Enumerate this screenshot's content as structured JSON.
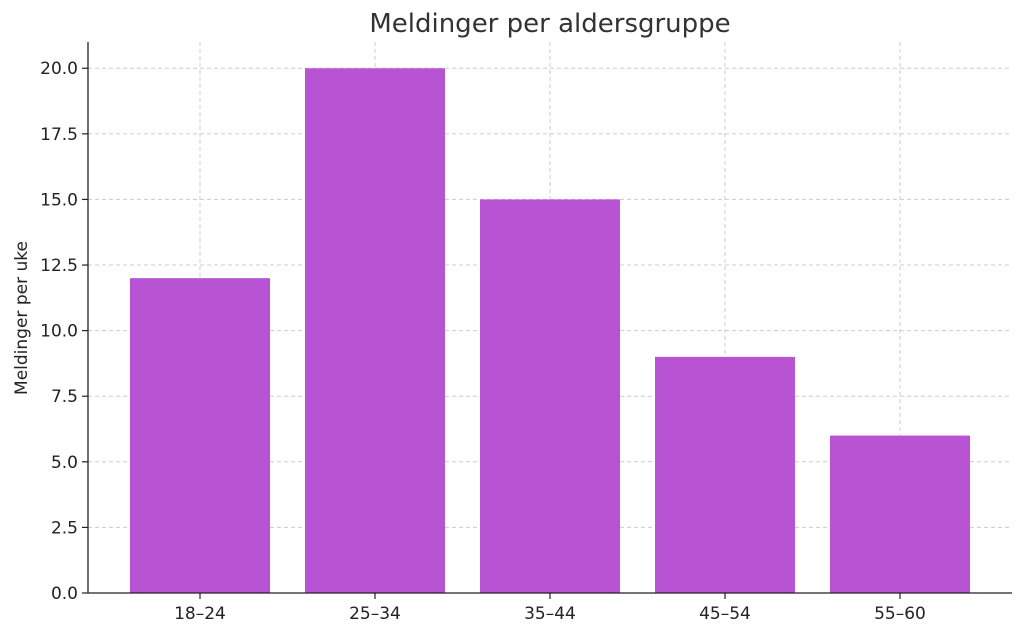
{
  "chart_data": {
    "type": "bar",
    "title": "Meldinger per aldersgruppe",
    "xlabel": "",
    "ylabel": "Meldinger per uke",
    "categories": [
      "18–24",
      "25–34",
      "35–44",
      "45–54",
      "55–60"
    ],
    "values": [
      12,
      20,
      15,
      9,
      6
    ],
    "ylim": [
      0,
      21
    ],
    "yticks": [
      "0.0",
      "2.5",
      "5.0",
      "7.5",
      "10.0",
      "12.5",
      "15.0",
      "17.5",
      "20.0"
    ],
    "grid": true,
    "bar_color": "#b853d4"
  }
}
